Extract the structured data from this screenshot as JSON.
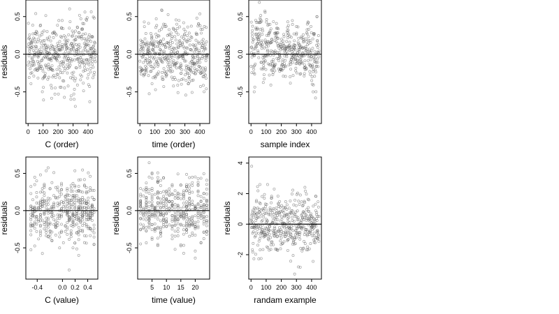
{
  "chart_data": [
    {
      "type": "scatter",
      "xlabel": "C (order)",
      "ylabel": "residuals",
      "xlim": [
        -15,
        465
      ],
      "ylim": [
        -0.92,
        0.72
      ],
      "xticks": [
        0,
        100,
        200,
        300,
        400
      ],
      "xtick_labels": [
        "0",
        "100",
        "200",
        "300",
        "400"
      ],
      "yticks": [
        -0.5,
        0.0,
        0.5
      ],
      "ytick_labels": [
        "-0.5",
        "0.0",
        "0.5"
      ],
      "hline": 0,
      "grid": false,
      "pattern": {
        "kind": "order",
        "n": 450,
        "sd": 0.22
      }
    },
    {
      "type": "scatter",
      "xlabel": "time (order)",
      "ylabel": "residuals",
      "xlim": [
        -15,
        465
      ],
      "ylim": [
        -0.92,
        0.72
      ],
      "xticks": [
        0,
        100,
        200,
        300,
        400
      ],
      "xtick_labels": [
        "0",
        "100",
        "200",
        "300",
        "400"
      ],
      "yticks": [
        -0.5,
        0.0,
        0.5
      ],
      "ytick_labels": [
        "-0.5",
        "0.0",
        "0.5"
      ],
      "hline": 0,
      "grid": false,
      "pattern": {
        "kind": "order",
        "n": 450,
        "sd": 0.22
      }
    },
    {
      "type": "scatter",
      "xlabel": "sample index",
      "ylabel": "residuals",
      "xlim": [
        -15,
        465
      ],
      "ylim": [
        -0.92,
        0.72
      ],
      "xticks": [
        0,
        100,
        200,
        300,
        400
      ],
      "xtick_labels": [
        "0",
        "100",
        "200",
        "300",
        "400"
      ],
      "yticks": [
        -0.5,
        0.0,
        0.5
      ],
      "ytick_labels": [
        "-0.5",
        "0.0",
        "0.5"
      ],
      "hline": 0,
      "grid": false,
      "pattern": {
        "kind": "autocorrelated",
        "n": 450,
        "sd": 0.2
      }
    },
    {
      "type": "scatter",
      "xlabel": "C (value)",
      "ylabel": "residuals",
      "xlim": [
        -0.58,
        0.56
      ],
      "ylim": [
        -0.92,
        0.72
      ],
      "xticks": [
        -0.4,
        0.0,
        0.2,
        0.4
      ],
      "xtick_labels": [
        "-0.4",
        "0.0",
        "0.2",
        "0.4"
      ],
      "yticks": [
        -0.5,
        0.0,
        0.5
      ],
      "ytick_labels": [
        "-0.5",
        "0.0",
        "0.5"
      ],
      "hline": 0,
      "grid": false,
      "pattern": {
        "kind": "columns",
        "n": 450,
        "sd": 0.22,
        "min": -0.5,
        "max": 0.5,
        "step": 0.0303
      }
    },
    {
      "type": "scatter",
      "xlabel": "time (value)",
      "ylabel": "residuals",
      "xlim": [
        0,
        25
      ],
      "ylim": [
        -0.92,
        0.72
      ],
      "xticks": [
        5,
        10,
        15,
        20
      ],
      "xtick_labels": [
        "5",
        "10",
        "15",
        "20"
      ],
      "yticks": [
        -0.5,
        0.0,
        0.5
      ],
      "ytick_labels": [
        "-0.5",
        "0.0",
        "0.5"
      ],
      "hline": 0,
      "grid": false,
      "pattern": {
        "kind": "columns",
        "n": 450,
        "sd": 0.22,
        "min": 1,
        "max": 24,
        "step": 1
      }
    },
    {
      "type": "scatter",
      "xlabel": "randam example",
      "ylabel": "residuals",
      "xlim": [
        -15,
        465
      ],
      "ylim": [
        -3.6,
        4.4
      ],
      "xticks": [
        0,
        100,
        200,
        300,
        400
      ],
      "xtick_labels": [
        "0",
        "100",
        "200",
        "300",
        "400"
      ],
      "yticks": [
        -2,
        0,
        2,
        4
      ],
      "ytick_labels": [
        "-2",
        "0",
        "2",
        "4"
      ],
      "hline": 0,
      "grid": false,
      "pattern": {
        "kind": "order",
        "n": 450,
        "sd": 1.0
      }
    }
  ]
}
